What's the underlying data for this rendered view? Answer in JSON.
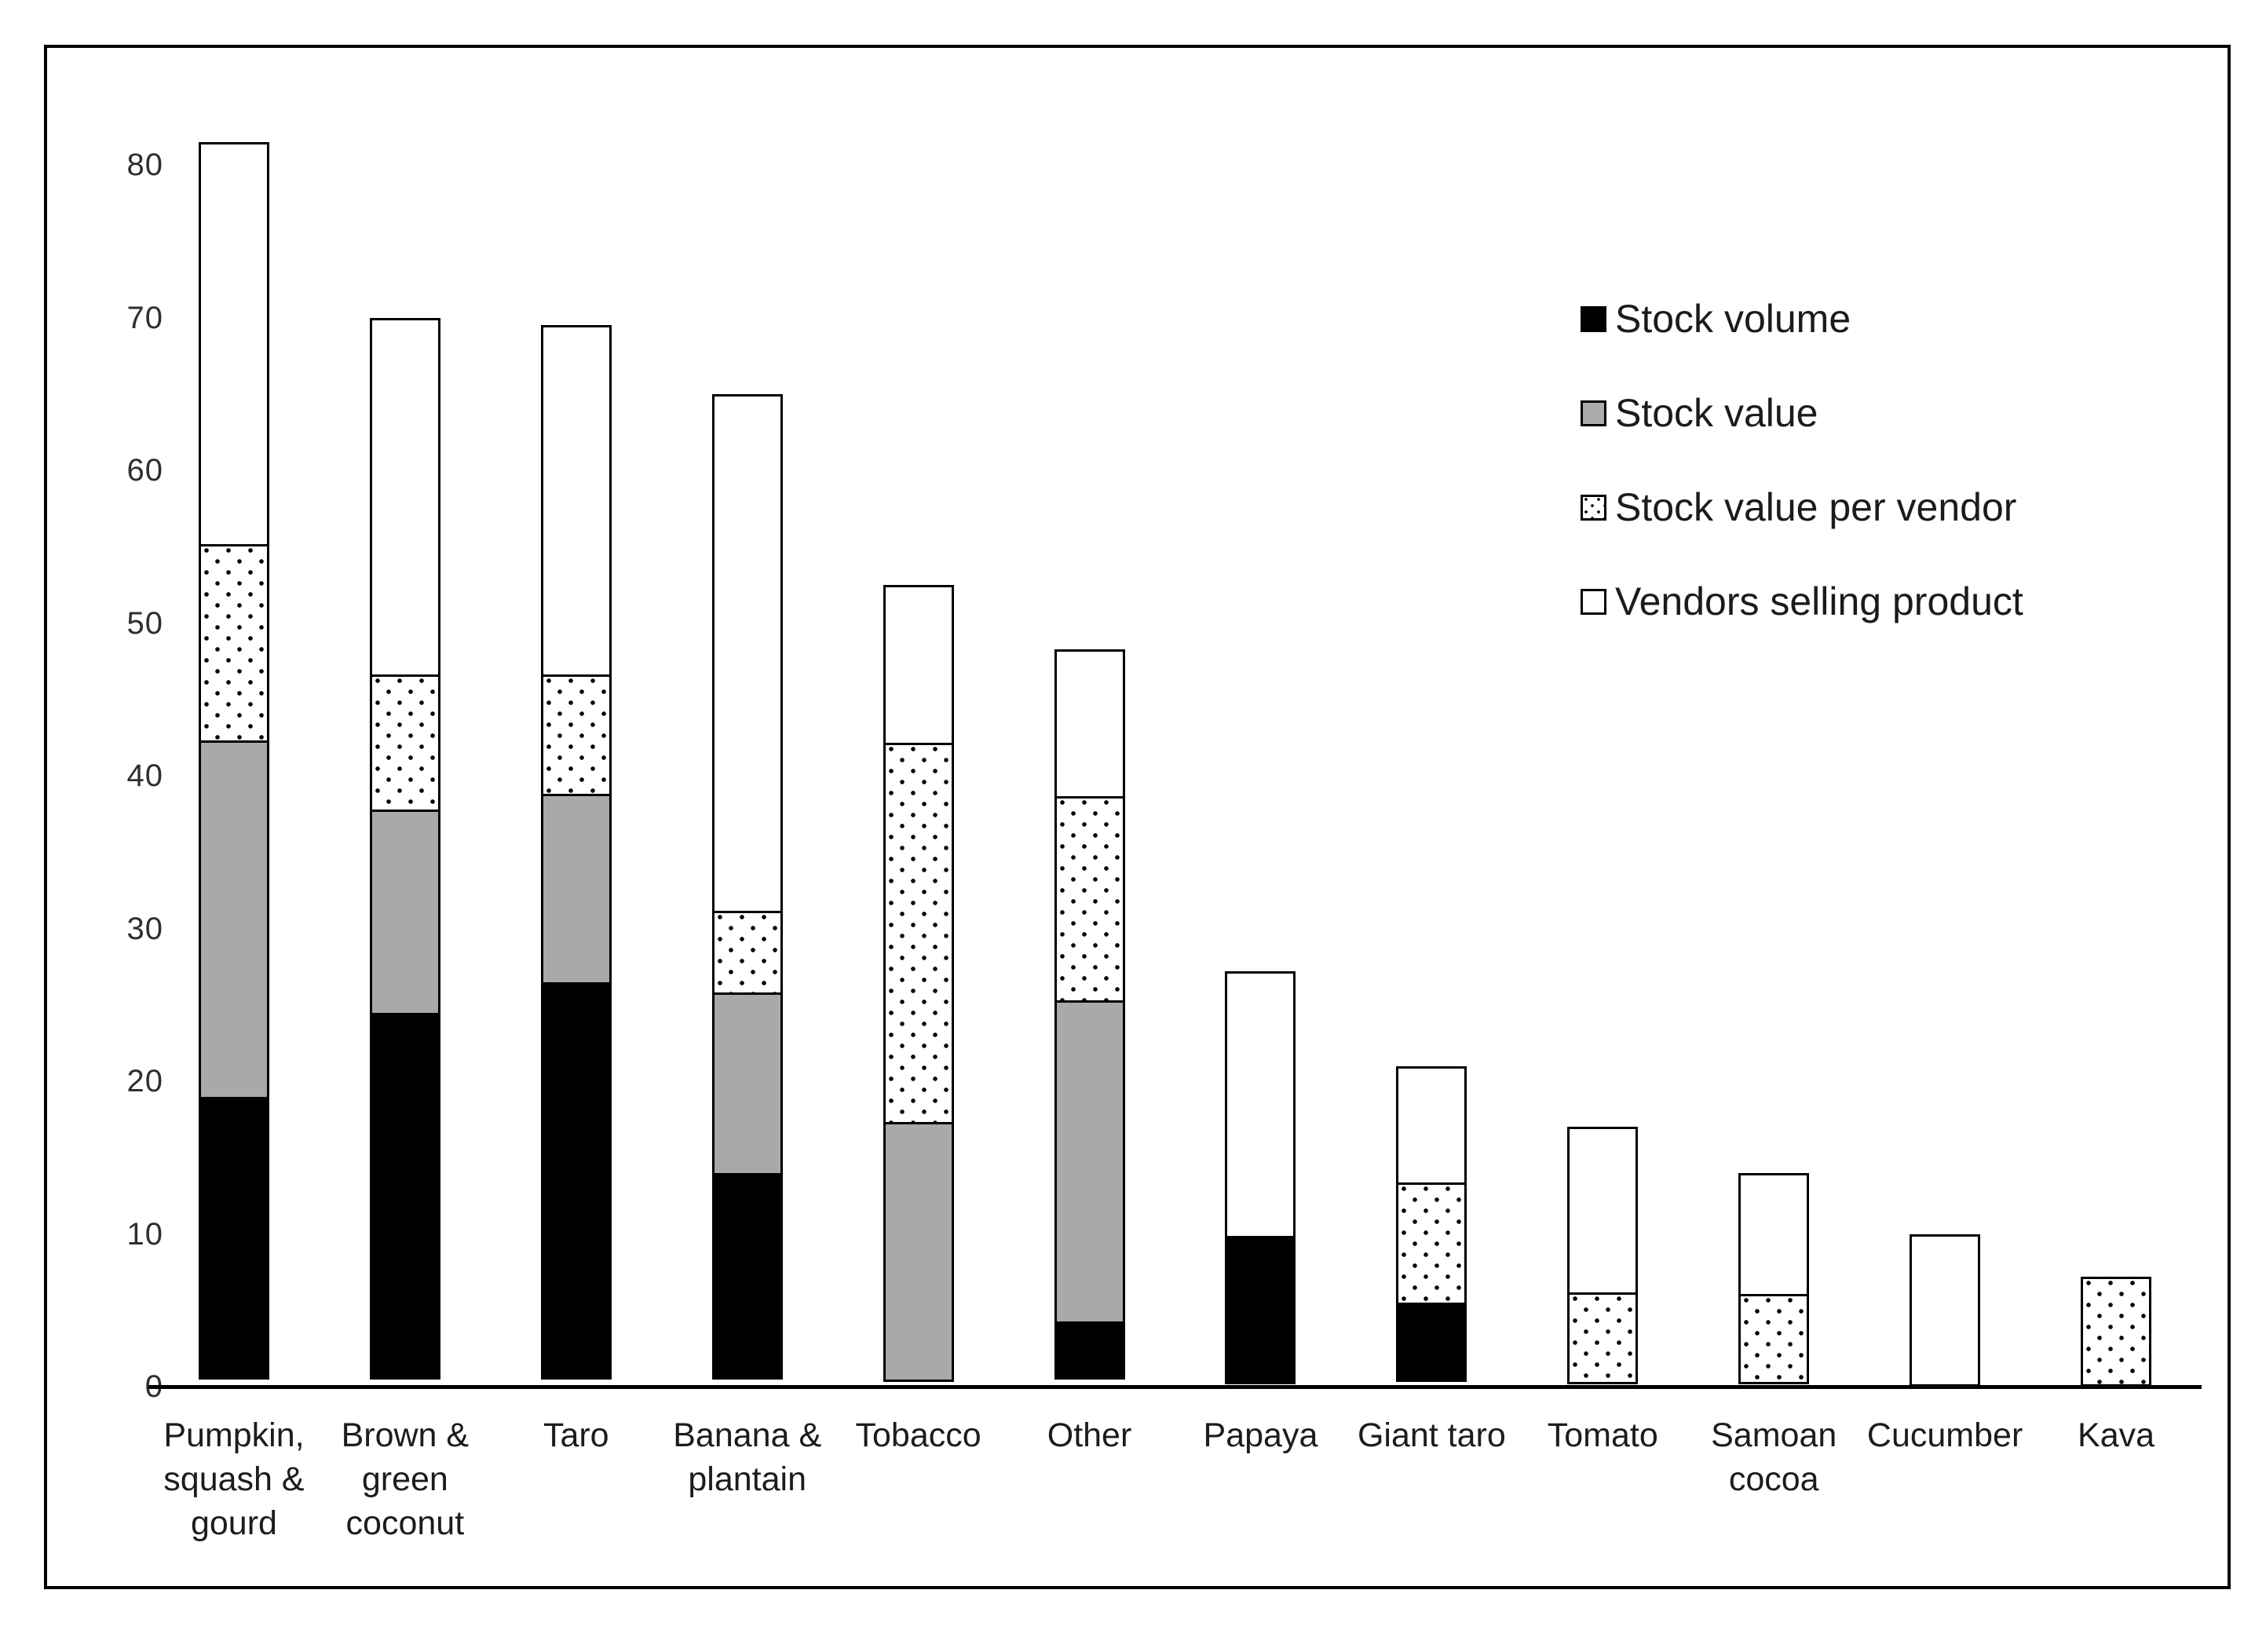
{
  "figure": {
    "background": "#ffffff",
    "frame_border_color": "#000000"
  },
  "y_axis": {
    "ticks": [
      "0",
      "10",
      "20",
      "30",
      "40",
      "50",
      "60",
      "70",
      "80"
    ]
  },
  "legend": {
    "items": [
      "Stock volume",
      "Stock value",
      "Stock value per vendor",
      "Vendors selling product"
    ]
  },
  "chart_data": {
    "type": "bar",
    "stacked": true,
    "title": "",
    "xlabel": "",
    "ylabel": "",
    "ylim": [
      0,
      85
    ],
    "yticks": [
      0,
      10,
      20,
      30,
      40,
      50,
      60,
      70,
      80
    ],
    "grid": false,
    "legend_position": "upper-right",
    "categories": [
      "Pumpkin, squash & gourd",
      "Brown & green coconut",
      "Taro",
      "Banana & plantain",
      "Tobacco",
      "Other",
      "Papaya",
      "Giant taro",
      "Tomato",
      "Samoan cocoa",
      "Cucumber",
      "Kava"
    ],
    "category_label_lines": [
      [
        "Pumpkin,",
        "squash &",
        "gourd"
      ],
      [
        "Brown &",
        "green",
        "coconut"
      ],
      [
        "Taro"
      ],
      [
        "Banana &",
        "plantain"
      ],
      [
        "Tobacco"
      ],
      [
        "Other"
      ],
      [
        "Papaya"
      ],
      [
        "Giant taro"
      ],
      [
        "Tomato"
      ],
      [
        "Samoan",
        "cocoa"
      ],
      [
        "Cucumber"
      ],
      [
        "Kava"
      ]
    ],
    "series": [
      {
        "name": "Stock volume",
        "fill": "solid-black",
        "color": "#000000",
        "values": [
          18.5,
          24,
          26,
          13.5,
          0,
          3.8,
          9.7,
          5.2,
          0,
          0,
          0,
          0
        ]
      },
      {
        "name": "Stock value",
        "fill": "solid-gray",
        "color": "#a9a9a9",
        "values": [
          23.5,
          13.5,
          12.5,
          12,
          17,
          21.2,
          0,
          0,
          0,
          0,
          0,
          0
        ]
      },
      {
        "name": "Stock value per vendor",
        "fill": "dotted",
        "color": "#ffffff",
        "values": [
          13,
          9,
          8,
          5.5,
          25,
          13.5,
          0,
          8,
          6,
          5.9,
          0,
          7.2
        ]
      },
      {
        "name": "Vendors selling product",
        "fill": "plain-white",
        "color": "#ffffff",
        "values": [
          26.5,
          23.5,
          23,
          34,
          10.5,
          9.8,
          17.5,
          7.8,
          11,
          8.1,
          10,
          0
        ]
      }
    ],
    "stack_totals": [
      81.5,
      70,
      69.5,
      65,
      52.5,
      48.3,
      27.2,
      21,
      17,
      14,
      10,
      7.2
    ]
  }
}
